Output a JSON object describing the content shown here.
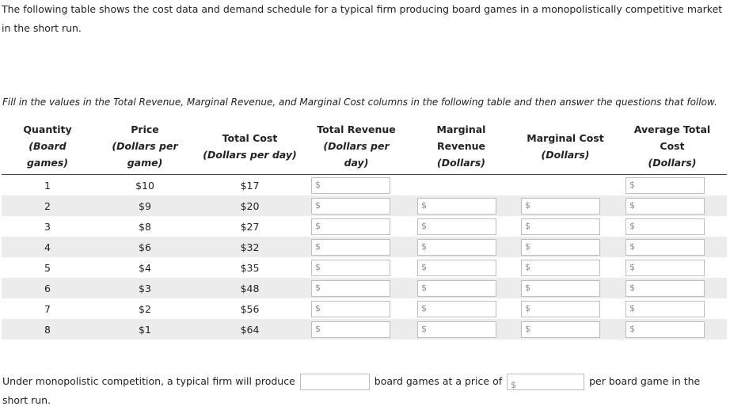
{
  "intro": "The following table shows the cost data and demand schedule for a typical firm producing board games in a monopolistically competitive market in the short run.",
  "instructions": "Fill in the values in the Total Revenue, Marginal Revenue, and Marginal Cost columns in the following table and then answer the questions that follow.",
  "currency_symbol": "$",
  "table": {
    "headers": [
      {
        "title": "Quantity",
        "unit": "(Board games)"
      },
      {
        "title": "Price",
        "unit": "(Dollars per game)"
      },
      {
        "title": "Total Cost",
        "unit": "(Dollars per day)"
      },
      {
        "title": "Total Revenue",
        "unit": "(Dollars per day)"
      },
      {
        "title": "Marginal Revenue",
        "unit": "(Dollars)"
      },
      {
        "title": "Marginal Cost",
        "unit": "(Dollars)"
      },
      {
        "title": "Average Total Cost",
        "unit": "(Dollars)"
      }
    ],
    "rows": [
      [
        1,
        "$10",
        "$17"
      ],
      [
        2,
        "$9",
        "$20"
      ],
      [
        3,
        "$8",
        "$27"
      ],
      [
        4,
        "$6",
        "$32"
      ],
      [
        5,
        "$4",
        "$35"
      ],
      [
        6,
        "$3",
        "$48"
      ],
      [
        7,
        "$2",
        "$56"
      ],
      [
        8,
        "$1",
        "$64"
      ]
    ]
  },
  "question": {
    "before": "Under monopolistic competition, a typical firm will produce",
    "middle": "board games at a price of",
    "after": "per board game in the short run."
  }
}
